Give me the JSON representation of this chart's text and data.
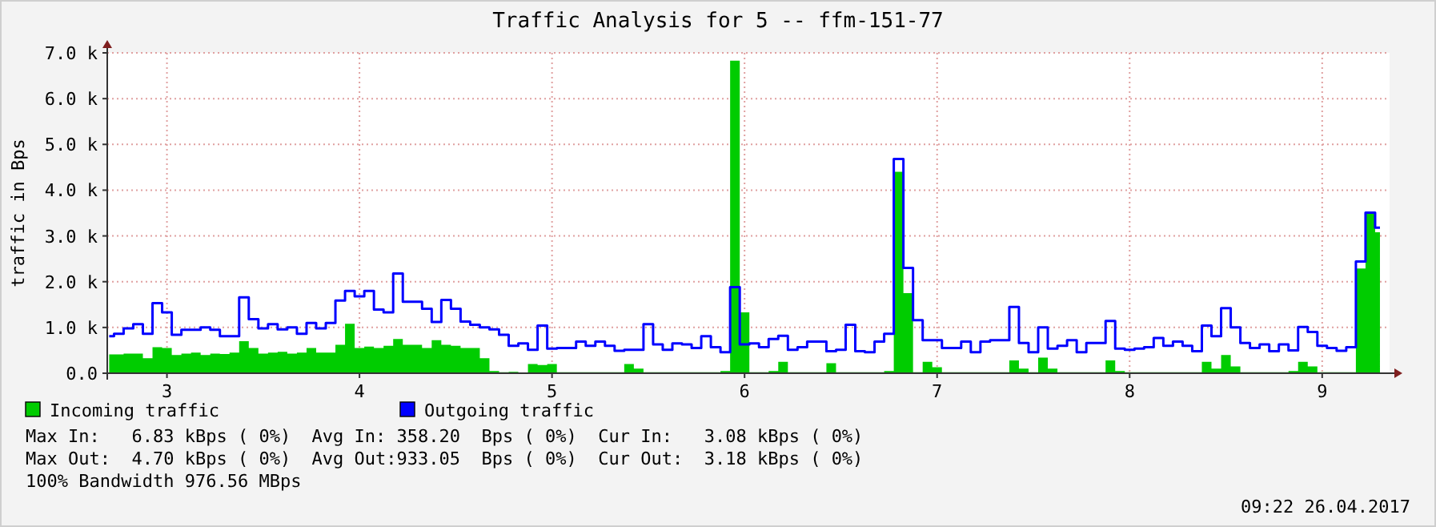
{
  "chart_data": {
    "type": "area",
    "title": "Traffic Analysis for 5 -- ffm-151-77",
    "ylabel": "traffic in Bps",
    "x": [
      2.7,
      2.75,
      2.8,
      2.85,
      2.9,
      2.95,
      3,
      3.05,
      3.1,
      3.15,
      3.2,
      3.25,
      3.3,
      3.35,
      3.4,
      3.45,
      3.5,
      3.55,
      3.6,
      3.65,
      3.7,
      3.75,
      3.8,
      3.85,
      3.9,
      3.95,
      4,
      4.05,
      4.1,
      4.15,
      4.2,
      4.25,
      4.3,
      4.35,
      4.4,
      4.45,
      4.5,
      4.55,
      4.6,
      4.65,
      4.7,
      4.75,
      4.8,
      4.85,
      4.9,
      4.95,
      5,
      5.05,
      5.1,
      5.15,
      5.2,
      5.25,
      5.3,
      5.35,
      5.4,
      5.45,
      5.5,
      5.55,
      5.6,
      5.65,
      5.7,
      5.75,
      5.8,
      5.85,
      5.9,
      5.95,
      6,
      6.05,
      6.1,
      6.15,
      6.2,
      6.25,
      6.3,
      6.35,
      6.4,
      6.45,
      6.5,
      6.55,
      6.6,
      6.65,
      6.7,
      6.75,
      6.8,
      6.85,
      6.9,
      6.95,
      7,
      7.05,
      7.1,
      7.15,
      7.2,
      7.25,
      7.3,
      7.35,
      7.4,
      7.45,
      7.5,
      7.55,
      7.6,
      7.65,
      7.7,
      7.75,
      7.8,
      7.85,
      7.9,
      7.95,
      8,
      8.05,
      8.1,
      8.15,
      8.2,
      8.25,
      8.3,
      8.35,
      8.4,
      8.45,
      8.5,
      8.55,
      8.6,
      8.65,
      8.7,
      8.75,
      8.8,
      8.85,
      8.9,
      8.95,
      9,
      9.05,
      9.1,
      9.15,
      9.2,
      9.25,
      9.3
    ],
    "series": [
      {
        "name": "Incoming traffic",
        "color": "#00cc00",
        "values": [
          0.41,
          0.41,
          0.43,
          0.43,
          0.33,
          0.57,
          0.55,
          0.4,
          0.43,
          0.45,
          0.4,
          0.43,
          0.42,
          0.45,
          0.7,
          0.55,
          0.43,
          0.45,
          0.47,
          0.43,
          0.45,
          0.55,
          0.45,
          0.45,
          0.62,
          1.08,
          0.55,
          0.58,
          0.55,
          0.6,
          0.75,
          0.62,
          0.62,
          0.55,
          0.72,
          0.62,
          0.6,
          0.55,
          0.55,
          0.33,
          0.05,
          0.02,
          0.03,
          0,
          0.2,
          0.18,
          0.2,
          0.02,
          0.02,
          0.02,
          0.02,
          0.02,
          0.02,
          0.02,
          0.2,
          0.1,
          0.02,
          0.02,
          0.02,
          0.02,
          0.02,
          0.02,
          0.02,
          0.02,
          0.05,
          6.83,
          1.33,
          0.02,
          0.02,
          0.05,
          0.25,
          0.02,
          0.02,
          0.02,
          0.02,
          0.22,
          0.02,
          0.02,
          0.02,
          0.02,
          0.02,
          0.05,
          4.4,
          1.75,
          0.02,
          0.25,
          0.13,
          0.02,
          0.02,
          0.02,
          0.02,
          0.02,
          0.02,
          0.02,
          0.28,
          0.1,
          0.02,
          0.34,
          0.1,
          0.02,
          0.02,
          0.02,
          0.02,
          0.02,
          0.28,
          0.05,
          0.02,
          0.02,
          0.02,
          0.02,
          0.02,
          0.02,
          0.02,
          0.02,
          0.25,
          0.1,
          0.4,
          0.15,
          0.02,
          0.02,
          0.02,
          0.02,
          0.02,
          0.05,
          0.25,
          0.15,
          0.02,
          0.02,
          0.02,
          0.02,
          2.29,
          3.49,
          3.08
        ]
      },
      {
        "name": "Outgoing traffic",
        "type": "step",
        "color": "#0000ff",
        "values": [
          0.81,
          0.86,
          0.98,
          1.07,
          0.86,
          1.53,
          1.33,
          0.84,
          0.95,
          0.95,
          1.0,
          0.95,
          0.81,
          0.81,
          1.66,
          1.18,
          0.98,
          1.07,
          0.96,
          1.0,
          0.86,
          1.1,
          0.98,
          1.1,
          1.59,
          1.8,
          1.68,
          1.8,
          1.39,
          1.33,
          2.18,
          1.56,
          1.56,
          1.41,
          1.12,
          1.6,
          1.41,
          1.13,
          1.06,
          1.0,
          0.96,
          0.84,
          0.6,
          0.65,
          0.51,
          1.04,
          0.54,
          0.55,
          0.55,
          0.69,
          0.6,
          0.69,
          0.6,
          0.49,
          0.51,
          0.51,
          1.07,
          0.63,
          0.51,
          0.65,
          0.63,
          0.55,
          0.81,
          0.57,
          0.46,
          1.88,
          0.63,
          0.65,
          0.57,
          0.75,
          0.82,
          0.51,
          0.57,
          0.69,
          0.69,
          0.48,
          0.51,
          1.06,
          0.48,
          0.46,
          0.69,
          0.86,
          4.68,
          2.3,
          1.16,
          0.72,
          0.72,
          0.55,
          0.55,
          0.69,
          0.46,
          0.69,
          0.72,
          0.72,
          1.45,
          0.66,
          0.46,
          1.0,
          0.54,
          0.6,
          0.72,
          0.46,
          0.66,
          0.66,
          1.14,
          0.54,
          0.51,
          0.54,
          0.57,
          0.77,
          0.6,
          0.69,
          0.6,
          0.48,
          1.04,
          0.81,
          1.42,
          1.0,
          0.66,
          0.55,
          0.63,
          0.48,
          0.63,
          0.5,
          1.01,
          0.9,
          0.6,
          0.55,
          0.49,
          0.57,
          2.44,
          3.51,
          3.18
        ]
      }
    ],
    "xlim": [
      2.69,
      9.35
    ],
    "xticks": [
      3,
      4,
      5,
      6,
      7,
      8,
      9
    ],
    "ylim": [
      0,
      7
    ],
    "yticks": [
      {
        "value": 0,
        "label": "0.0"
      },
      {
        "value": 1,
        "label": "1.0 k"
      },
      {
        "value": 2,
        "label": "2.0 k"
      },
      {
        "value": 3,
        "label": "3.0 k"
      },
      {
        "value": 4,
        "label": "4.0 k"
      },
      {
        "value": 5,
        "label": "5.0 k"
      },
      {
        "value": 6,
        "label": "6.0 k"
      },
      {
        "value": 7,
        "label": "7.0 k"
      }
    ],
    "grid": true,
    "legend": "bottom left",
    "annotations": [
      "Max In:   6.83 kBps ( 0%)  Avg In: 358.20  Bps ( 0%)  Cur In:   3.08 kBps ( 0%)",
      "Max Out:  4.70 kBps ( 0%)  Avg Out:933.05  Bps ( 0%)  Cur Out:  3.18 kBps ( 0%)",
      "100% Bandwidth 976.56 MBps",
      "09:22 26.04.2017"
    ]
  }
}
